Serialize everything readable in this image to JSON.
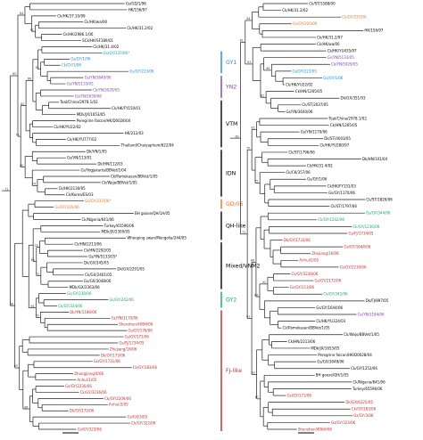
{
  "left_tree": {
    "leaves": [
      {
        "label": "Gs/GD/1/96",
        "color": "#000000"
      },
      {
        "label": "HK/156/97",
        "color": "#000000"
      },
      {
        "label": "Ck/HK/37.10/99",
        "color": "#000000"
      },
      {
        "label": "Ck/HK/wa/00",
        "color": "#000000"
      },
      {
        "label": "Ck/HK/31.2/02",
        "color": "#000000"
      },
      {
        "label": "Ck/HK/2986.1/00",
        "color": "#000000"
      },
      {
        "label": "SCk/HK/SF189/01",
        "color": "#000000"
      },
      {
        "label": "Ck/HK/31.4/02",
        "color": "#000000"
      },
      {
        "label": "Gs/GY/337/06*",
        "color": "#1a8cd8"
      },
      {
        "label": "Gs/GY/1/06",
        "color": "#1a8cd8"
      },
      {
        "label": "Ck/GY/1/06",
        "color": "#1a8cd8"
      },
      {
        "label": "Gs/GY/223/06",
        "color": "#1a8cd8"
      },
      {
        "label": "Gs/YN/3640/06",
        "color": "#7b3fb5"
      },
      {
        "label": "Gs/YN/5133/05",
        "color": "#7b3fb5"
      },
      {
        "label": "Ck/YN/5029/05",
        "color": "#7b3fb5"
      },
      {
        "label": "Gs/YN/2639/06",
        "color": "#7b3fb5"
      },
      {
        "label": "Teal/China/2978.1/02",
        "color": "#000000"
      },
      {
        "label": "Ck/HK/FY150/01",
        "color": "#000000"
      },
      {
        "label": "MDk/JX/1653/05",
        "color": "#000000"
      },
      {
        "label": "Peregrine falcon/HK/D0028/04",
        "color": "#000000"
      },
      {
        "label": "Ck/HK/YU22/02",
        "color": "#000000"
      },
      {
        "label": "HK/212/03",
        "color": "#000000"
      },
      {
        "label": "Ck/HK/YU777/02",
        "color": "#000000"
      },
      {
        "label": "Thailand/Chaiyaphum/622/04",
        "color": "#000000"
      },
      {
        "label": "Dk/VN/1/05",
        "color": "#000000"
      },
      {
        "label": "Gs/VN/113/01",
        "color": "#000000"
      },
      {
        "label": "Dk/HN/112/03",
        "color": "#000000"
      },
      {
        "label": "Gs/Yogjakarta/BBVet/1/04",
        "color": "#000000"
      },
      {
        "label": "Ck/Pamekasan/BBVet/1/05",
        "color": "#000000"
      },
      {
        "label": "Ck/Wajo/BBVet/1/05",
        "color": "#000000"
      },
      {
        "label": "Ck/HK/2130/05",
        "color": "#000000"
      },
      {
        "label": "Ck/Korea/ES/03",
        "color": "#000000"
      },
      {
        "label": "Gs/GY/337/06*",
        "color": "#e8732a"
      },
      {
        "label": "Gs/GY/220/06",
        "color": "#e8732a"
      },
      {
        "label": "BH goose/QH/1A/05",
        "color": "#000000"
      },
      {
        "label": "Ck/Nigeria/641/06",
        "color": "#000000"
      },
      {
        "label": "Turkey/65596/06",
        "color": "#000000"
      },
      {
        "label": "MDk/JX/2300/05",
        "color": "#000000"
      },
      {
        "label": "Whooping swan/Mongolia/244/05",
        "color": "#000000"
      },
      {
        "label": "Ck/HN/2213/06",
        "color": "#000000"
      },
      {
        "label": "Ck/HN/2292/05",
        "color": "#000000"
      },
      {
        "label": "Gs/YN/5133/05*",
        "color": "#000000"
      },
      {
        "label": "Dk/GX/345/05",
        "color": "#000000"
      },
      {
        "label": "Dk/GX/2291/05",
        "color": "#000000"
      },
      {
        "label": "Ck/GX/2461/05",
        "color": "#000000"
      },
      {
        "label": "Gs/GX/3048/06",
        "color": "#000000"
      },
      {
        "label": "MDk/GX/2363/06",
        "color": "#000000"
      },
      {
        "label": "Gs/GY/236/06",
        "color": "#18a36b"
      },
      {
        "label": "Gs/GY/242/06",
        "color": "#18a36b"
      },
      {
        "label": "Ck/GY/324/06",
        "color": "#18a36b"
      },
      {
        "label": "Dk/YN/1186/06",
        "color": "#c62828"
      },
      {
        "label": "Gs/YN/1170/06",
        "color": "#c62828"
      },
      {
        "label": "Shenzhen/406H/06",
        "color": "#c62828"
      },
      {
        "label": "Gs/GY/176/06",
        "color": "#c62828"
      },
      {
        "label": "Gs/GY/171/06",
        "color": "#c62828"
      },
      {
        "label": "Gs/FJ/1734/05",
        "color": "#c62828"
      },
      {
        "label": "Zhejiang/16/06",
        "color": "#c62828"
      },
      {
        "label": "Dk/GY/173/06",
        "color": "#c62828"
      },
      {
        "label": "Gs/GY/1731/06",
        "color": "#c62828"
      },
      {
        "label": "Ck/GY/183/06",
        "color": "#c62828"
      },
      {
        "label": "Zhangjiang/4/06",
        "color": "#c62828"
      },
      {
        "label": "Anhui/1/05",
        "color": "#c62828"
      },
      {
        "label": "Gs/GY/2230/06",
        "color": "#c62828"
      },
      {
        "label": "Ck/GY/3236/06",
        "color": "#c62828"
      },
      {
        "label": "Ck/GY/2209/06",
        "color": "#c62828"
      },
      {
        "label": "Anhui/2/05",
        "color": "#c62828"
      },
      {
        "label": "Dk/GY/172/06",
        "color": "#c62828"
      },
      {
        "label": "Gs/GX/3/05",
        "color": "#c62828"
      },
      {
        "label": "Ck/GY/322/06",
        "color": "#c62828"
      },
      {
        "label": "Gs/GY/323/06",
        "color": "#c62828"
      }
    ],
    "clades": [
      {
        "label": "GY1",
        "color": "#1a8cd8"
      },
      {
        "label": "YN2",
        "color": "#7b3fb5"
      },
      {
        "label": "VTM",
        "color": "#000000"
      },
      {
        "label": "IDN",
        "color": "#000000"
      },
      {
        "label": "GD/06",
        "color": "#e8732a"
      },
      {
        "label": "QH-like",
        "color": "#000000"
      },
      {
        "label": "Mixed/VNM2",
        "color": "#000000"
      },
      {
        "label": "GY2",
        "color": "#18a36b"
      },
      {
        "label": "FJ-like",
        "color": "#c62828"
      }
    ]
  },
  "right_tree": {
    "leaves": [
      {
        "label": "Ck/ST/1588/00",
        "color": "#000000"
      },
      {
        "label": "Ck/HK/31.2/02",
        "color": "#000000"
      },
      {
        "label": "Ck/GY/337/06",
        "color": "#e8732a"
      },
      {
        "label": "Gs/GY/220/06",
        "color": "#e8732a"
      },
      {
        "label": "HK/156/97",
        "color": "#000000"
      },
      {
        "label": "Ck/HK/31.2/97",
        "color": "#000000"
      },
      {
        "label": "Ck/HK/wa/00",
        "color": "#000000"
      },
      {
        "label": "Ck/HK/YU435/97",
        "color": "#000000"
      },
      {
        "label": "Gs/YN/5133/05",
        "color": "#7b3fb5"
      },
      {
        "label": "Ck/YN/5029/05",
        "color": "#7b3fb5"
      },
      {
        "label": "Gs/GY/223/05",
        "color": "#1a8cd8"
      },
      {
        "label": "Gs/GY/1/06",
        "color": "#1a8cd8"
      },
      {
        "label": "Ck/HK/YU22/02",
        "color": "#000000"
      },
      {
        "label": "Ck/HN/1265/05",
        "color": "#000000"
      },
      {
        "label": "Dk/GX/351/03",
        "color": "#000000"
      },
      {
        "label": "Ck/ST/2037/05",
        "color": "#000000"
      },
      {
        "label": "Gs/YN/3640/06",
        "color": "#000000"
      },
      {
        "label": "Teal/China/2978.1/02",
        "color": "#000000"
      },
      {
        "label": "Ck/HN/1265/05",
        "color": "#000000"
      },
      {
        "label": "Gs/YN/1170/06",
        "color": "#000000"
      },
      {
        "label": "Dk/ST/4003/05",
        "color": "#000000"
      },
      {
        "label": "Ck/HK/YU280/97",
        "color": "#000000"
      },
      {
        "label": "Ck/ST/1796/06",
        "color": "#000000"
      },
      {
        "label": "Dk/HN/101/04",
        "color": "#000000"
      },
      {
        "label": "Ck/HK/31.4/02",
        "color": "#000000"
      },
      {
        "label": "Ck/CK/357/06",
        "color": "#000000"
      },
      {
        "label": "Gs/GY/1/06",
        "color": "#000000"
      },
      {
        "label": "Ck/HK/FY151/03",
        "color": "#000000"
      },
      {
        "label": "Gs/GY/1170/06",
        "color": "#000000"
      },
      {
        "label": "Ck/ST/1826/06",
        "color": "#000000"
      },
      {
        "label": "Ck/ST/1797/06",
        "color": "#000000"
      },
      {
        "label": "Gs/GY/344/06",
        "color": "#18a36b"
      },
      {
        "label": "Ck/GY/1242/06",
        "color": "#18a36b"
      },
      {
        "label": "Ck/GY/1236/06",
        "color": "#18a36b"
      },
      {
        "label": "Gs/FJ/1734/05",
        "color": "#c62828"
      },
      {
        "label": "Dk/GY/1733/06",
        "color": "#c62828"
      },
      {
        "label": "Gs/GY/1644/06",
        "color": "#c62828"
      },
      {
        "label": "Zhejiang/16/06",
        "color": "#c62828"
      },
      {
        "label": "Anhui/2/05",
        "color": "#c62828"
      },
      {
        "label": "Gs/GY/2230/06",
        "color": "#c62828"
      },
      {
        "label": "Ck/GY/3236/06",
        "color": "#c62828"
      },
      {
        "label": "Gs/GY/2172/06",
        "color": "#c62828"
      },
      {
        "label": "Gs/GY/213/06",
        "color": "#c62828"
      },
      {
        "label": "Ck/GY/342/06",
        "color": "#18a36b"
      },
      {
        "label": "Dk/FJ/897/05",
        "color": "#000000"
      },
      {
        "label": "Gs/GY/1644/06",
        "color": "#000000"
      },
      {
        "label": "Gs/YN/1184/06",
        "color": "#7b3fb5"
      },
      {
        "label": "Ck/HK/YU324/03",
        "color": "#000000"
      },
      {
        "label": "Ck/Pamekasan/BBVet/1/05",
        "color": "#000000"
      },
      {
        "label": "Ck/Wajo/BBVet/1/05",
        "color": "#000000"
      },
      {
        "label": "Ck/HN/2213/06",
        "color": "#000000"
      },
      {
        "label": "MDk/JX/1653/05",
        "color": "#000000"
      },
      {
        "label": "Peregrine falcon/HK/D0028/04",
        "color": "#000000"
      },
      {
        "label": "Gs/GX/3048/06",
        "color": "#000000"
      },
      {
        "label": "Ck/GY/1253/06",
        "color": "#000000"
      },
      {
        "label": "BH goose/QH/1/05",
        "color": "#000000"
      },
      {
        "label": "Ck/Nigeria/641/06",
        "color": "#000000"
      },
      {
        "label": "Turkey/65596/06",
        "color": "#000000"
      },
      {
        "label": "Gs/GY/171/06",
        "color": "#c62828"
      },
      {
        "label": "Dk/GX/6225/05",
        "color": "#c62828"
      },
      {
        "label": "Ck/GY/183/06",
        "color": "#c62828"
      },
      {
        "label": "Gs/GY/3/06",
        "color": "#c62828"
      },
      {
        "label": "Gs/GY/323/06",
        "color": "#c62828"
      },
      {
        "label": "Shenzhen/406H/06",
        "color": "#c62828"
      }
    ]
  },
  "legend": {
    "colors": {
      "GY1": "#1a8cd8",
      "YN2": "#7b3fb5",
      "GD06": "#e8732a",
      "GY2": "#18a36b",
      "FJ": "#c62828"
    }
  }
}
